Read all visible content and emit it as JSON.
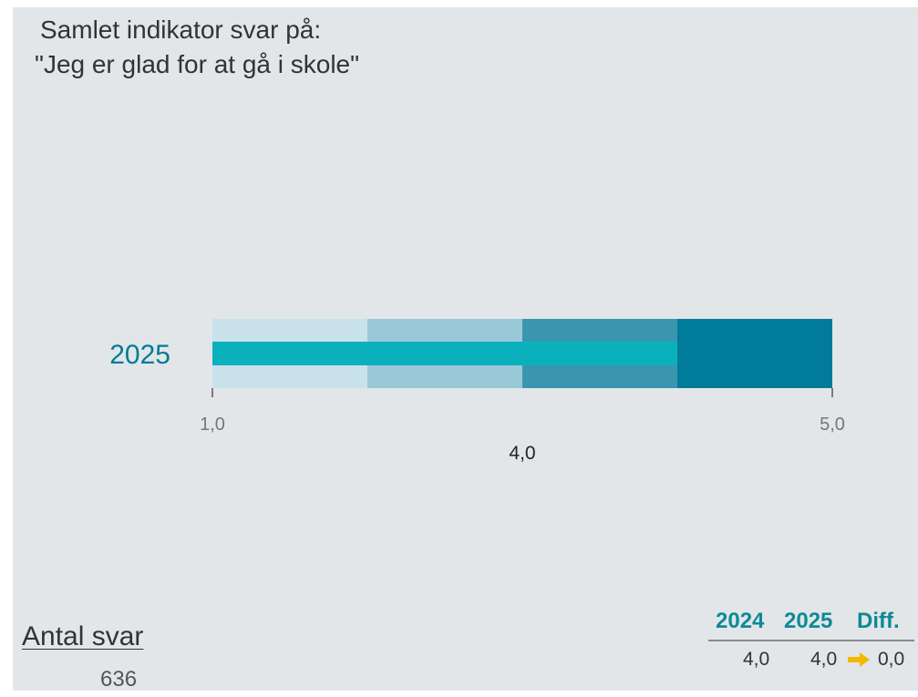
{
  "title": {
    "line1": "Samlet indikator svar på:",
    "line2": "\"Jeg er glad for at gå i skole\""
  },
  "chart_data": {
    "type": "bar",
    "orientation": "horizontal",
    "subtype": "bullet",
    "categories": [
      "2025"
    ],
    "values": [
      4.0
    ],
    "value_labels": [
      "4,0"
    ],
    "xlim": [
      1.0,
      5.0
    ],
    "tick_labels": [
      "1,0",
      "5,0"
    ],
    "bands": [
      {
        "from": 1.0,
        "to": 2.0,
        "color": "#c9e2ea"
      },
      {
        "from": 2.0,
        "to": 3.0,
        "color": "#99c8d6"
      },
      {
        "from": 3.0,
        "to": 4.0,
        "color": "#3a96ae"
      },
      {
        "from": 4.0,
        "to": 5.0,
        "color": "#007b9a"
      }
    ],
    "bar_color": "#0bb0bd"
  },
  "respondents": {
    "label": "Antal svar",
    "value": "636"
  },
  "summary": {
    "headers": [
      "2024",
      "2025",
      "Diff."
    ],
    "values": [
      "4,0",
      "4,0",
      "0,0"
    ],
    "trend_icon": "arrow-right-icon",
    "trend_color": "#f5b800"
  }
}
